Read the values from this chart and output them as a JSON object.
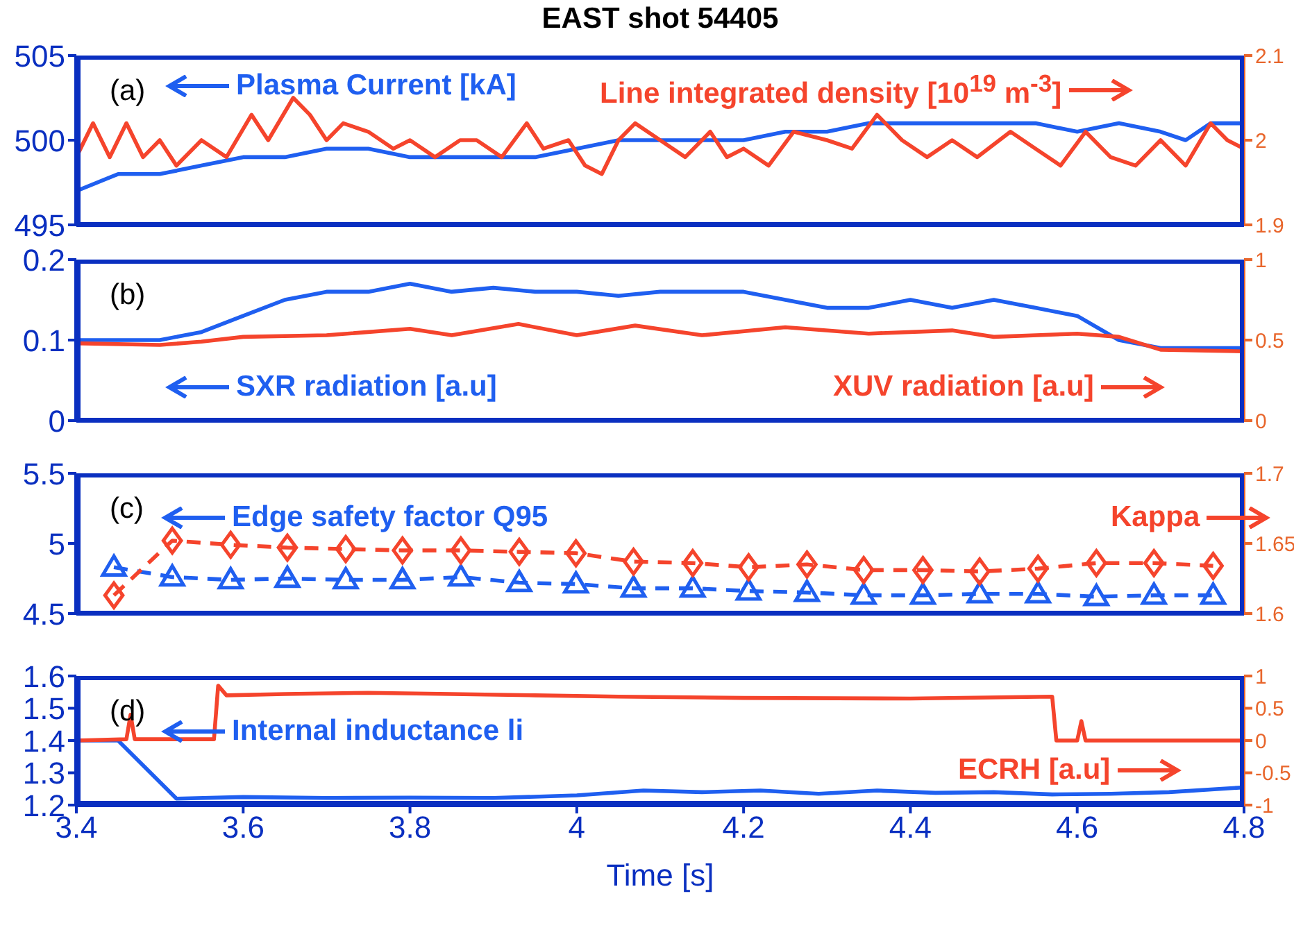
{
  "chart_data": [
    {
      "type": "line",
      "title": "EAST shot 54405",
      "xlim": [
        3.4,
        4.8
      ],
      "xticks": [
        3.4,
        3.6,
        3.8,
        4,
        4.2,
        4.4,
        4.6,
        4.8
      ],
      "ylim": [
        495,
        505
      ],
      "yticks": [
        495,
        500,
        505
      ],
      "y2lim": [
        1.9,
        2.1
      ],
      "y2ticks": [
        1.9,
        2,
        2.1
      ],
      "tick_labels": "y",
      "annotations": [
        "(a)"
      ],
      "marker": "none",
      "series": [
        {
          "name": "Plasma Current [kA]",
          "color": "#1f5ff0",
          "x": [
            3.4,
            3.45,
            3.5,
            3.55,
            3.6,
            3.65,
            3.7,
            3.75,
            3.8,
            3.85,
            3.9,
            3.95,
            4,
            4.05,
            4.1,
            4.15,
            4.2,
            4.25,
            4.3,
            4.35,
            4.4,
            4.45,
            4.5,
            4.55,
            4.6,
            4.65,
            4.7,
            4.73,
            4.76,
            4.8
          ],
          "values": [
            497,
            498,
            498,
            498.5,
            499,
            499,
            499.5,
            499.5,
            499,
            499,
            499,
            499,
            499.5,
            500,
            500,
            500,
            500,
            500.5,
            500.5,
            501,
            501,
            501,
            501,
            501,
            500.5,
            501,
            500.5,
            500,
            501,
            501
          ]
        },
        {
          "name": "Line integrated density [10$^{19}$ m$^{-3}$]",
          "color": "#f5442c",
          "axis": "y2",
          "x": [
            3.4,
            3.42,
            3.44,
            3.46,
            3.48,
            3.5,
            3.52,
            3.55,
            3.58,
            3.61,
            3.63,
            3.66,
            3.68,
            3.7,
            3.72,
            3.75,
            3.78,
            3.8,
            3.83,
            3.86,
            3.88,
            3.91,
            3.94,
            3.96,
            3.99,
            4.01,
            4.03,
            4.05,
            4.07,
            4.1,
            4.13,
            4.16,
            4.18,
            4.2,
            4.23,
            4.26,
            4.3,
            4.33,
            4.36,
            4.39,
            4.42,
            4.45,
            4.48,
            4.52,
            4.55,
            4.58,
            4.61,
            4.64,
            4.67,
            4.7,
            4.73,
            4.76,
            4.78,
            4.8
          ],
          "values": [
            1.98,
            2.02,
            1.98,
            2.02,
            1.98,
            2,
            1.97,
            2,
            1.98,
            2.03,
            2,
            2.05,
            2.03,
            2,
            2.02,
            2.01,
            1.99,
            2,
            1.98,
            2,
            2,
            1.98,
            2.02,
            1.99,
            2,
            1.97,
            1.96,
            2,
            2.02,
            2,
            1.98,
            2.01,
            1.98,
            1.99,
            1.97,
            2.01,
            2,
            1.99,
            2.03,
            2,
            1.98,
            2,
            1.98,
            2.01,
            1.99,
            1.97,
            2.01,
            1.98,
            1.97,
            2,
            1.97,
            2.02,
            2,
            1.99
          ]
        }
      ]
    },
    {
      "type": "line",
      "xlim": [
        3.4,
        4.8
      ],
      "xticks": [
        3.4,
        3.6,
        3.8,
        4,
        4.2,
        4.4,
        4.6,
        4.8
      ],
      "ylim": [
        0,
        0.2
      ],
      "yticks": [
        0,
        0.1,
        0.2
      ],
      "y2lim": [
        0,
        1
      ],
      "y2ticks": [
        0,
        0.5,
        1
      ],
      "tick_labels": "y",
      "annotations": [
        "(b)"
      ],
      "marker": "none",
      "series": [
        {
          "name": "SXR radiation [a.u]",
          "color": "#1f5ff0",
          "x": [
            3.4,
            3.45,
            3.5,
            3.55,
            3.6,
            3.65,
            3.7,
            3.75,
            3.8,
            3.85,
            3.9,
            3.95,
            4,
            4.05,
            4.1,
            4.15,
            4.2,
            4.25,
            4.3,
            4.35,
            4.4,
            4.45,
            4.5,
            4.55,
            4.6,
            4.65,
            4.7,
            4.75,
            4.8
          ],
          "values": [
            0.1,
            0.1,
            0.1,
            0.11,
            0.13,
            0.15,
            0.16,
            0.16,
            0.17,
            0.16,
            0.165,
            0.16,
            0.16,
            0.155,
            0.16,
            0.16,
            0.16,
            0.15,
            0.14,
            0.14,
            0.15,
            0.14,
            0.15,
            0.14,
            0.13,
            0.1,
            0.09,
            0.09,
            0.09
          ]
        },
        {
          "name": "XUV radiation [a.u]",
          "color": "#f5442c",
          "axis": "y2",
          "x": [
            3.4,
            3.5,
            3.55,
            3.6,
            3.7,
            3.8,
            3.85,
            3.93,
            4,
            4.07,
            4.15,
            4.25,
            4.35,
            4.45,
            4.5,
            4.6,
            4.65,
            4.7,
            4.8
          ],
          "values": [
            0.48,
            0.47,
            0.49,
            0.52,
            0.53,
            0.57,
            0.53,
            0.6,
            0.53,
            0.59,
            0.53,
            0.58,
            0.54,
            0.56,
            0.52,
            0.54,
            0.52,
            0.44,
            0.43
          ]
        }
      ]
    },
    {
      "type": "line",
      "xlim": [
        3.4,
        4.8
      ],
      "xticks": [
        3.4,
        3.6,
        3.8,
        4,
        4.2,
        4.4,
        4.6,
        4.8
      ],
      "ylim": [
        4.5,
        5.5
      ],
      "yticks": [
        4.5,
        5,
        5.5
      ],
      "y2lim": [
        1.6,
        1.7
      ],
      "y2ticks": [
        1.6,
        1.65,
        1.7
      ],
      "tick_labels": "y",
      "annotations": [
        "(c)"
      ],
      "line_style": "dashed",
      "series": [
        {
          "name": "Edge safety factor Q95",
          "color": "#1f5ff0",
          "marker": "triangle",
          "x": [
            3.445,
            3.515,
            3.585,
            3.653,
            3.723,
            3.791,
            3.861,
            3.931,
            3.999,
            4.068,
            4.139,
            4.206,
            4.276,
            4.344,
            4.415,
            4.483,
            4.553,
            4.623,
            4.692,
            4.763
          ],
          "values": [
            4.83,
            4.76,
            4.74,
            4.75,
            4.74,
            4.74,
            4.76,
            4.72,
            4.71,
            4.68,
            4.68,
            4.66,
            4.65,
            4.63,
            4.63,
            4.64,
            4.64,
            4.62,
            4.63,
            4.63
          ]
        },
        {
          "name": "Kappa",
          "color": "#f5442c",
          "axis": "y2",
          "marker": "diamond",
          "x": [
            3.445,
            3.515,
            3.585,
            3.653,
            3.723,
            3.791,
            3.861,
            3.931,
            3.999,
            4.068,
            4.139,
            4.206,
            4.276,
            4.344,
            4.415,
            4.483,
            4.553,
            4.623,
            4.692,
            4.763
          ],
          "values": [
            1.613,
            1.652,
            1.649,
            1.647,
            1.646,
            1.645,
            1.645,
            1.644,
            1.643,
            1.637,
            1.636,
            1.633,
            1.635,
            1.631,
            1.631,
            1.63,
            1.632,
            1.636,
            1.636,
            1.634
          ]
        }
      ]
    },
    {
      "type": "line",
      "xlabel": "Time [s]",
      "xlim": [
        3.4,
        4.8
      ],
      "xticks": [
        3.4,
        3.6,
        3.8,
        4,
        4.2,
        4.4,
        4.6,
        4.8
      ],
      "ylim": [
        1.2,
        1.6
      ],
      "yticks": [
        1.2,
        1.3,
        1.4,
        1.5,
        1.6
      ],
      "y2lim": [
        -1,
        1
      ],
      "y2ticks": [
        -1,
        -0.5,
        0,
        0.5,
        1
      ],
      "annotations": [
        "(d)"
      ],
      "marker": "none",
      "series": [
        {
          "name": "Internal inductance li",
          "color": "#1f5ff0",
          "x": [
            3.4,
            3.45,
            3.52,
            3.6,
            3.7,
            3.8,
            3.9,
            4,
            4.08,
            4.15,
            4.22,
            4.29,
            4.36,
            4.43,
            4.5,
            4.57,
            4.64,
            4.71,
            4.8
          ],
          "values": [
            1.4,
            1.4,
            1.22,
            1.225,
            1.222,
            1.223,
            1.222,
            1.23,
            1.245,
            1.24,
            1.245,
            1.235,
            1.245,
            1.238,
            1.24,
            1.233,
            1.235,
            1.24,
            1.255
          ]
        },
        {
          "name": "ECRH [a.u]",
          "color": "#f5442c",
          "axis": "y2",
          "x": [
            3.4,
            3.46,
            3.465,
            3.47,
            3.565,
            3.57,
            3.58,
            3.65,
            3.75,
            3.85,
            3.95,
            4.05,
            4.2,
            4.4,
            4.57,
            4.575,
            4.6,
            4.605,
            4.61,
            4.8
          ],
          "values": [
            0,
            0.02,
            0.4,
            0.02,
            0.02,
            0.85,
            0.7,
            0.72,
            0.74,
            0.72,
            0.7,
            0.68,
            0.66,
            0.65,
            0.68,
            0,
            0,
            0.3,
            0,
            0
          ]
        }
      ]
    }
  ]
}
